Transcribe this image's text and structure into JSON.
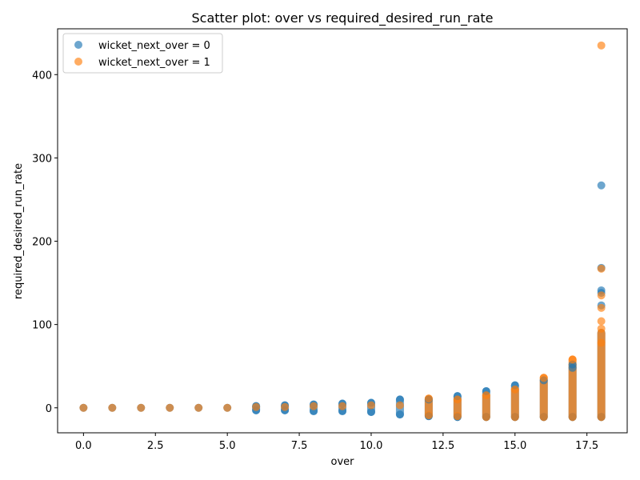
{
  "chart_data": {
    "type": "scatter",
    "title": "Scatter plot: over vs required_desired_run_rate",
    "xlabel": "over",
    "ylabel": "required_desired_run_rate",
    "xlim": [
      -0.9,
      18.9
    ],
    "ylim": [
      -30,
      455
    ],
    "xticks": [
      0,
      2.5,
      5,
      7.5,
      10,
      12.5,
      15,
      17.5
    ],
    "xtick_labels": [
      "0.0",
      "2.5",
      "5.0",
      "7.5",
      "10.0",
      "12.5",
      "15.0",
      "17.5"
    ],
    "yticks": [
      0,
      100,
      200,
      300,
      400
    ],
    "ytick_labels": [
      "0",
      "100",
      "200",
      "300",
      "400"
    ],
    "grid": false,
    "legend_position": "top-left",
    "series": [
      {
        "name": "wicket_next_over = 0",
        "color": "#1f77b4",
        "points": [
          {
            "x": 0,
            "y": 0
          },
          {
            "x": 1,
            "y": 0
          },
          {
            "x": 2,
            "y": 0
          },
          {
            "x": 3,
            "y": 0
          },
          {
            "x": 4,
            "y": 0
          },
          {
            "x": 5,
            "y": 0
          },
          {
            "x": 6,
            "y": -3
          },
          {
            "x": 6,
            "y": 2
          },
          {
            "x": 7,
            "y": -3
          },
          {
            "x": 7,
            "y": 3
          },
          {
            "x": 8,
            "y": -4
          },
          {
            "x": 8,
            "y": 4
          },
          {
            "x": 9,
            "y": -4
          },
          {
            "x": 9,
            "y": 5
          },
          {
            "x": 10,
            "y": -5
          },
          {
            "x": 10,
            "y": 6
          },
          {
            "x": 11,
            "y": -8
          },
          {
            "x": 11,
            "y": 10
          },
          {
            "x": 12,
            "y": -10
          },
          {
            "x": 12,
            "y": 10
          },
          {
            "x": 13,
            "y": -11
          },
          {
            "x": 13,
            "y": 14
          },
          {
            "x": 14,
            "y": -11
          },
          {
            "x": 14,
            "y": 20
          },
          {
            "x": 15,
            "y": -11
          },
          {
            "x": 15,
            "y": 27
          },
          {
            "x": 16,
            "y": -11
          },
          {
            "x": 16,
            "y": 33
          },
          {
            "x": 17,
            "y": -11
          },
          {
            "x": 17,
            "y": 48
          },
          {
            "x": 17,
            "y": 52
          },
          {
            "x": 18,
            "y": -11
          },
          {
            "x": 18,
            "y": 123
          },
          {
            "x": 18,
            "y": 138
          },
          {
            "x": 18,
            "y": 141
          },
          {
            "x": 18,
            "y": 168
          },
          {
            "x": 18,
            "y": 267
          }
        ]
      },
      {
        "name": "wicket_next_over = 1",
        "color": "#ff7f0e",
        "points": [
          {
            "x": 0,
            "y": 0
          },
          {
            "x": 1,
            "y": 0
          },
          {
            "x": 2,
            "y": 0
          },
          {
            "x": 3,
            "y": 0
          },
          {
            "x": 4,
            "y": 0
          },
          {
            "x": 5,
            "y": 0
          },
          {
            "x": 6,
            "y": 1
          },
          {
            "x": 7,
            "y": 1
          },
          {
            "x": 8,
            "y": 2
          },
          {
            "x": 9,
            "y": 2
          },
          {
            "x": 10,
            "y": 3
          },
          {
            "x": 11,
            "y": 3
          },
          {
            "x": 12,
            "y": -9
          },
          {
            "x": 12,
            "y": 11
          },
          {
            "x": 13,
            "y": -10
          },
          {
            "x": 13,
            "y": 10
          },
          {
            "x": 14,
            "y": -11
          },
          {
            "x": 14,
            "y": 15
          },
          {
            "x": 15,
            "y": -11
          },
          {
            "x": 15,
            "y": 22
          },
          {
            "x": 16,
            "y": -11
          },
          {
            "x": 16,
            "y": 36
          },
          {
            "x": 17,
            "y": -11
          },
          {
            "x": 17,
            "y": 58
          },
          {
            "x": 18,
            "y": -11
          },
          {
            "x": 18,
            "y": 78
          },
          {
            "x": 18,
            "y": 95
          },
          {
            "x": 18,
            "y": 104
          },
          {
            "x": 18,
            "y": 120
          },
          {
            "x": 18,
            "y": 135
          },
          {
            "x": 18,
            "y": 167
          },
          {
            "x": 18,
            "y": 435
          }
        ]
      }
    ]
  }
}
